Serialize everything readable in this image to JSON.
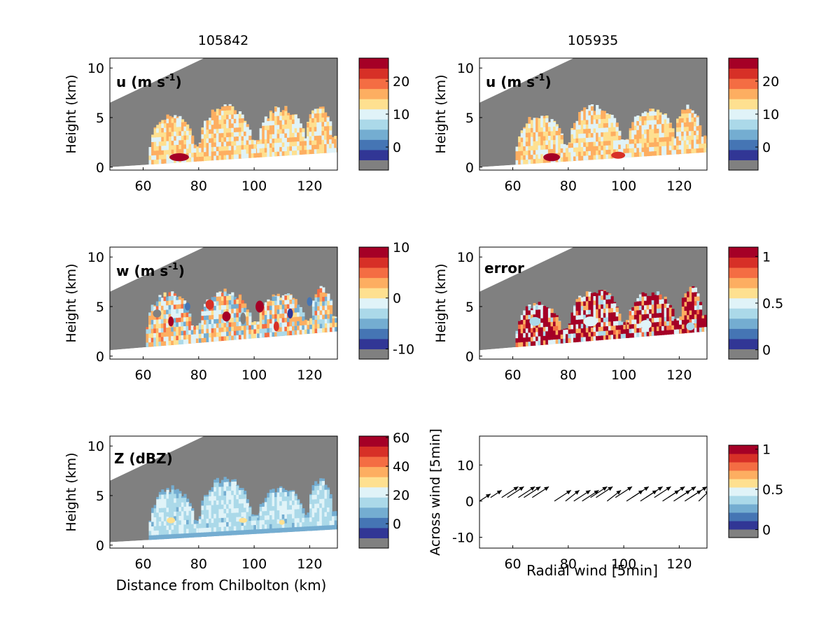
{
  "colors": {
    "masked": "#808080",
    "palette": [
      "#313695",
      "#4575b4",
      "#74add1",
      "#abd9e9",
      "#e0f3f8",
      "#fee090",
      "#fdae61",
      "#f46d43",
      "#d73027",
      "#a50026"
    ],
    "arrow": "#000000"
  },
  "chart_data": [
    {
      "type": "heatmap",
      "panel": "u-105842",
      "title": "105842",
      "label": "u (m s",
      "label_sup": "-1",
      "label_tail": ")",
      "xlabel": "",
      "ylabel": "Height (km)",
      "xlim": [
        48,
        130
      ],
      "ylim": [
        -0.3,
        11
      ],
      "xticks": [
        "60",
        "80",
        "100",
        "120"
      ],
      "yticks": [
        "0",
        "5",
        "10"
      ],
      "colorbar": {
        "range": [
          -7,
          27
        ],
        "ticks": [
          "0",
          "10",
          "20"
        ],
        "tick_values": [
          0,
          10,
          20
        ]
      },
      "dominant_values": [
        10,
        13,
        16
      ],
      "scan_top": {
        "x": [
          48,
          82
        ],
        "y": [
          6.5,
          11
        ]
      },
      "ground": {
        "x": [
          48,
          130
        ],
        "y": [
          0,
          1.5
        ]
      },
      "echoes": [
        {
          "x0": 62,
          "x1": 82,
          "top": 5.2
        },
        {
          "x0": 80,
          "x1": 103,
          "top": 6.2
        },
        {
          "x0": 101,
          "x1": 122,
          "top": 6.0
        },
        {
          "x0": 118,
          "x1": 130,
          "top": 6.3
        }
      ],
      "highlights": [
        {
          "x": 73,
          "h": 1.0,
          "value": 25,
          "rx": 7,
          "ry": 0.8
        }
      ]
    },
    {
      "type": "heatmap",
      "panel": "u-105935",
      "title": "105935",
      "label": "u (m s",
      "label_sup": "-1",
      "label_tail": ")",
      "xlabel": "",
      "ylabel": "Height (km)",
      "xlim": [
        48,
        130
      ],
      "ylim": [
        -0.3,
        11
      ],
      "xticks": [
        "60",
        "80",
        "100",
        "120"
      ],
      "yticks": [
        "0",
        "5",
        "10"
      ],
      "colorbar": {
        "range": [
          -7,
          27
        ],
        "ticks": [
          "0",
          "10",
          "20"
        ],
        "tick_values": [
          0,
          10,
          20
        ]
      },
      "dominant_values": [
        10,
        13,
        16
      ],
      "scan_top": {
        "x": [
          48,
          82
        ],
        "y": [
          6.5,
          11
        ]
      },
      "ground": {
        "x": [
          48,
          130
        ],
        "y": [
          0,
          1.5
        ]
      },
      "echoes": [
        {
          "x0": 61,
          "x1": 82,
          "top": 5.3
        },
        {
          "x0": 80,
          "x1": 103,
          "top": 6.2
        },
        {
          "x0": 101,
          "x1": 122,
          "top": 6.0
        },
        {
          "x0": 118,
          "x1": 130,
          "top": 6.2
        }
      ],
      "highlights": [
        {
          "x": 74,
          "h": 1.0,
          "value": 25,
          "rx": 6,
          "ry": 0.8
        },
        {
          "x": 98,
          "h": 1.2,
          "value": 22,
          "rx": 5,
          "ry": 0.7
        }
      ]
    },
    {
      "type": "heatmap",
      "panel": "w-105842",
      "title": "",
      "label": "w (m s",
      "label_sup": "-1",
      "label_tail": ")",
      "xlabel": "",
      "ylabel": "Height (km)",
      "xlim": [
        48,
        130
      ],
      "ylim": [
        -0.3,
        11
      ],
      "xticks": [
        "60",
        "80",
        "100",
        "120"
      ],
      "yticks": [
        "0",
        "5",
        "10"
      ],
      "colorbar": {
        "range": [
          -12,
          10
        ],
        "ticks": [
          "-10",
          "0",
          "10"
        ],
        "tick_values": [
          -10,
          0,
          10
        ]
      },
      "dominant_values": [
        -1,
        2,
        4,
        -4
      ],
      "scan_top": {
        "x": [
          48,
          82
        ],
        "y": [
          6.5,
          11
        ]
      },
      "ground": {
        "x": [
          48,
          130
        ],
        "y": [
          0.6,
          2.5
        ]
      },
      "echoes": [
        {
          "x0": 61,
          "x1": 81,
          "top": 6.5
        },
        {
          "x0": 80,
          "x1": 103,
          "top": 6.7
        },
        {
          "x0": 101,
          "x1": 122,
          "top": 6.3
        },
        {
          "x0": 120,
          "x1": 130,
          "top": 7.0
        }
      ],
      "highlights": [
        {
          "x": 65,
          "h": 4.3,
          "value": -11,
          "rx": 3,
          "ry": 0.8
        },
        {
          "x": 70,
          "h": 3.5,
          "value": 9,
          "rx": 2,
          "ry": 1.0
        },
        {
          "x": 76,
          "h": 5.0,
          "value": -8,
          "rx": 2,
          "ry": 0.8
        },
        {
          "x": 84,
          "h": 5.2,
          "value": 6,
          "rx": 3,
          "ry": 1.0
        },
        {
          "x": 90,
          "h": 4.0,
          "value": 9,
          "rx": 3,
          "ry": 1.0
        },
        {
          "x": 96,
          "h": 3.8,
          "value": -11,
          "rx": 2,
          "ry": 1.2
        },
        {
          "x": 102,
          "h": 5.0,
          "value": 8,
          "rx": 3,
          "ry": 1.2
        },
        {
          "x": 108,
          "h": 3.0,
          "value": 6,
          "rx": 2,
          "ry": 1.0
        },
        {
          "x": 113,
          "h": 4.3,
          "value": -9,
          "rx": 2,
          "ry": 1.0
        },
        {
          "x": 120,
          "h": 5.5,
          "value": -7,
          "rx": 2,
          "ry": 0.9
        }
      ]
    },
    {
      "type": "heatmap",
      "panel": "error-105935",
      "title": "",
      "label": "error",
      "label_sup": "",
      "label_tail": "",
      "xlabel": "",
      "ylabel": "Height (km)",
      "xlim": [
        48,
        130
      ],
      "ylim": [
        -0.3,
        11
      ],
      "xticks": [
        "60",
        "80",
        "100",
        "120"
      ],
      "yticks": [
        "0",
        "5",
        "10"
      ],
      "colorbar": {
        "range": [
          -0.1,
          1.1
        ],
        "ticks": [
          "0",
          "0.5",
          "1"
        ],
        "tick_values": [
          0,
          0.5,
          1
        ]
      },
      "dominant_values": [
        1.05,
        1.05,
        0.75,
        0.45
      ],
      "scan_top": {
        "x": [
          48,
          82
        ],
        "y": [
          6.5,
          11
        ]
      },
      "ground": {
        "x": [
          48,
          130
        ],
        "y": [
          0.6,
          2.5
        ]
      },
      "echoes": [
        {
          "x0": 61,
          "x1": 81,
          "top": 5.4
        },
        {
          "x0": 80,
          "x1": 103,
          "top": 6.8
        },
        {
          "x0": 101,
          "x1": 122,
          "top": 6.5
        },
        {
          "x0": 120,
          "x1": 130,
          "top": 7.0
        }
      ],
      "highlights": [
        {
          "x": 68,
          "h": 3.5,
          "value": 0.4,
          "rx": 4,
          "ry": 0.9
        },
        {
          "x": 88,
          "h": 3.5,
          "value": 0.45,
          "rx": 5,
          "ry": 1.0
        },
        {
          "x": 108,
          "h": 3.2,
          "value": 0.45,
          "rx": 4,
          "ry": 0.9
        },
        {
          "x": 124,
          "h": 3.0,
          "value": 0.4,
          "rx": 3,
          "ry": 0.8
        }
      ]
    },
    {
      "type": "heatmap",
      "panel": "Z-105842",
      "title": "",
      "label": "Z (dBZ)",
      "label_sup": "",
      "label_tail": "",
      "xlabel": "Distance from Chilbolton (km)",
      "ylabel": "Height (km)",
      "xlim": [
        48,
        130
      ],
      "ylim": [
        -0.3,
        11
      ],
      "xticks": [
        "60",
        "80",
        "100",
        "120"
      ],
      "yticks": [
        "0",
        "5",
        "10"
      ],
      "colorbar": {
        "range": [
          -17,
          61
        ],
        "ticks": [
          "0",
          "20",
          "40",
          "60"
        ],
        "tick_values": [
          0,
          20,
          40,
          60
        ]
      },
      "dominant_values": [
        17,
        22,
        13
      ],
      "scan_top": {
        "x": [
          48,
          82
        ],
        "y": [
          6.5,
          11
        ]
      },
      "ground": {
        "x": [
          48,
          130
        ],
        "y": [
          0.3,
          1.6
        ]
      },
      "echoes": [
        {
          "x0": 62,
          "x1": 82,
          "top": 5.8
        },
        {
          "x0": 80,
          "x1": 103,
          "top": 6.8
        },
        {
          "x0": 101,
          "x1": 122,
          "top": 5.8
        },
        {
          "x0": 119,
          "x1": 130,
          "top": 6.7
        }
      ],
      "echo_edge_value": 5,
      "highlights": [
        {
          "x": 70,
          "h": 2.5,
          "value": 32,
          "rx": 3,
          "ry": 0.6
        },
        {
          "x": 96,
          "h": 2.5,
          "value": 32,
          "rx": 3,
          "ry": 0.5
        },
        {
          "x": 110,
          "h": 2.3,
          "value": 32,
          "rx": 2,
          "ry": 0.5
        }
      ]
    },
    {
      "type": "scatter",
      "panel": "quiver",
      "title": "",
      "xlabel": "Radial wind [5min]",
      "ylabel": "Across wind [5min]",
      "xlim": [
        48,
        130
      ],
      "ylim": [
        -13,
        18
      ],
      "xticks": [
        "60",
        "80",
        "100",
        "120"
      ],
      "yticks": [
        "-10",
        "0",
        "10"
      ],
      "colorbar": {
        "range": [
          -0.1,
          1.05
        ],
        "ticks": [
          "0",
          "0.5",
          "1"
        ],
        "tick_values": [
          0,
          0.5,
          1
        ]
      },
      "arrows": [
        {
          "x": 48,
          "y": 0,
          "dx": 4,
          "dy": 2
        },
        {
          "x": 52,
          "y": 1,
          "dx": 4,
          "dy": 2
        },
        {
          "x": 56,
          "y": 1,
          "dx": 6,
          "dy": 3
        },
        {
          "x": 58,
          "y": 1,
          "dx": 6,
          "dy": 3
        },
        {
          "x": 62,
          "y": 1,
          "dx": 6,
          "dy": 3
        },
        {
          "x": 64,
          "y": 1,
          "dx": 6,
          "dy": 3
        },
        {
          "x": 67,
          "y": 1,
          "dx": 6,
          "dy": 3
        },
        {
          "x": 75,
          "y": 0,
          "dx": 6,
          "dy": 3
        },
        {
          "x": 79,
          "y": 0,
          "dx": 5,
          "dy": 3
        },
        {
          "x": 82,
          "y": 0,
          "dx": 6,
          "dy": 3
        },
        {
          "x": 85,
          "y": 0,
          "dx": 6,
          "dy": 3
        },
        {
          "x": 88,
          "y": 1,
          "dx": 6,
          "dy": 3
        },
        {
          "x": 90,
          "y": 1,
          "dx": 6,
          "dy": 3
        },
        {
          "x": 94,
          "y": 0,
          "dx": 5,
          "dy": 3
        },
        {
          "x": 97,
          "y": 1,
          "dx": 6,
          "dy": 3
        },
        {
          "x": 101,
          "y": 0,
          "dx": 6,
          "dy": 3
        },
        {
          "x": 103,
          "y": 1,
          "dx": 6,
          "dy": 3
        },
        {
          "x": 106,
          "y": 0,
          "dx": 6,
          "dy": 3
        },
        {
          "x": 108,
          "y": 1,
          "dx": 6,
          "dy": 3
        },
        {
          "x": 111,
          "y": 1,
          "dx": 6,
          "dy": 3
        },
        {
          "x": 114,
          "y": 0,
          "dx": 6,
          "dy": 3
        },
        {
          "x": 116,
          "y": 1,
          "dx": 6,
          "dy": 3
        },
        {
          "x": 118,
          "y": 0,
          "dx": 6,
          "dy": 3
        },
        {
          "x": 120,
          "y": 1,
          "dx": 6,
          "dy": 3
        },
        {
          "x": 122,
          "y": 0,
          "dx": 6,
          "dy": 3
        },
        {
          "x": 124,
          "y": 1,
          "dx": 6,
          "dy": 3
        },
        {
          "x": 127,
          "y": 0,
          "dx": 4,
          "dy": 3
        }
      ]
    }
  ]
}
